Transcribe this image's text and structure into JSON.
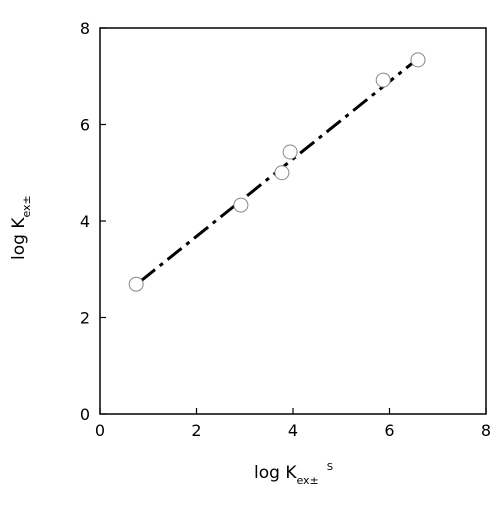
{
  "chart_data": {
    "type": "scatter",
    "x_label": {
      "main": "log K",
      "sub": "ex±",
      "sup": "S"
    },
    "y_label": {
      "main": "log K",
      "sub": "ex±"
    },
    "points": {
      "x": [
        0.75,
        2.92,
        3.77,
        3.94,
        5.87,
        6.59
      ],
      "y": [
        2.69,
        4.33,
        5.0,
        5.43,
        6.92,
        7.34
      ],
      "color": "#ffffff",
      "edge_color": "#888888"
    },
    "fit_line": {
      "x": [
        0.85,
        6.51
      ],
      "y": [
        2.76,
        7.3
      ],
      "color": "#000000",
      "style": "dash-dot"
    },
    "xlim": [
      0,
      8
    ],
    "ylim": [
      0,
      8
    ],
    "xticks": [
      0,
      2,
      4,
      6,
      8
    ],
    "yticks": [
      0,
      2,
      4,
      6,
      8
    ]
  }
}
